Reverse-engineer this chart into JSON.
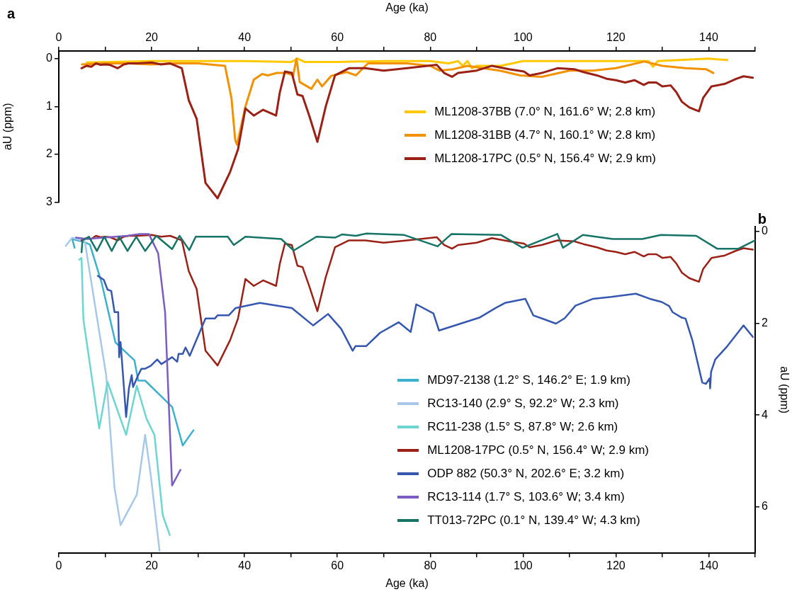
{
  "chart_data": [
    {
      "type": "line",
      "title": "a",
      "xlabel": "Age (ka)",
      "ylabel": "aU (ppm)",
      "xlim": [
        0,
        150
      ],
      "xticks": [
        0,
        {
          "value": 10,
          "label": null
        },
        20,
        {
          "value": 30,
          "label": null
        },
        40,
        {
          "value": 50,
          "label": null
        },
        60,
        {
          "value": 70,
          "label": null
        },
        80,
        {
          "value": 90,
          "label": null
        },
        100,
        {
          "value": 110,
          "label": null
        },
        120,
        {
          "value": 130,
          "label": null
        },
        140,
        {
          "value": 150,
          "label": null
        }
      ],
      "ylim": [
        3,
        -0.16
      ],
      "yticks": [
        0,
        1,
        2,
        3
      ],
      "grid": false,
      "legend": "bottom right",
      "marker": "none",
      "series": [
        {
          "name": "ML1208-37BB (7.0° N, 161.6° W; 2.8 km)",
          "color": "#ffc800",
          "x": [
            6,
            20,
            40,
            50,
            51.5,
            53,
            60,
            70,
            80,
            84,
            86,
            87,
            88,
            89,
            90,
            95.2,
            100,
            110,
            127,
            128,
            129,
            140,
            144
          ],
          "values": [
            0.08,
            0.05,
            0.05,
            0.07,
            0.0,
            0.07,
            0.07,
            0.05,
            0.05,
            0.1,
            0.05,
            0.15,
            0.05,
            0.2,
            0.15,
            0.15,
            0.05,
            0.05,
            0.05,
            0.17,
            0.05,
            0.0,
            0.03
          ]
        },
        {
          "name": "ML1208-31BB (4.7° N, 160.1° W; 2.8 km)",
          "color": "#f39200",
          "x": [
            5,
            10,
            15,
            20,
            25,
            30,
            35.8,
            37.2,
            38,
            38.4,
            40.2,
            42,
            43.8,
            45,
            47,
            49,
            50.5,
            51.2,
            51.9,
            54.4,
            55.7,
            56.7,
            58.7,
            62,
            64,
            66.6,
            75,
            80,
            82,
            85,
            88,
            95,
            99.4,
            104,
            110,
            115,
            120,
            126.1,
            130,
            135,
            139.4,
            141
          ],
          "values": [
            0.12,
            0.1,
            0.1,
            0.12,
            0.1,
            0.1,
            0.15,
            0.83,
            1.7,
            1.8,
            1.0,
            0.44,
            0.32,
            0.35,
            0.3,
            0.3,
            0.35,
            0.0,
            0.49,
            0.63,
            0.44,
            0.58,
            0.36,
            0.28,
            0.35,
            0.1,
            0.1,
            0.15,
            0.25,
            0.22,
            0.15,
            0.25,
            0.35,
            0.38,
            0.25,
            0.25,
            0.2,
            0.06,
            0.15,
            0.2,
            0.22,
            0.3
          ]
        },
        {
          "name": "ML1208-17PC (0.5° N, 156.4° W; 2.9 km)",
          "color": "#9b2016",
          "x": [
            4.9,
            6,
            7,
            8,
            9,
            10,
            11,
            12.7,
            14,
            15,
            17,
            20,
            22,
            24,
            26.5,
            28,
            29.7,
            31.6,
            34.2,
            36.9,
            38.6,
            40.2,
            42,
            44,
            46.8,
            47.6,
            48.7,
            50.2,
            51.4,
            52.5,
            54,
            55.7,
            57.5,
            59.5,
            62.5,
            66,
            70,
            75,
            81.4,
            83,
            84.7,
            86,
            90,
            93.3,
            97,
            100.2,
            101.4,
            104,
            107.4,
            111,
            113,
            115.9,
            118,
            120,
            122,
            124,
            126,
            127,
            128.7,
            130,
            131.8,
            133,
            134.2,
            135.8,
            137.1,
            137.9,
            138.8,
            140.6,
            143.4,
            146,
            147.5,
            149.5
          ],
          "values": [
            0.2,
            0.15,
            0.17,
            0.1,
            0.13,
            0.12,
            0.13,
            0.2,
            0.12,
            0.1,
            0.1,
            0.08,
            0.12,
            0.1,
            0.2,
            0.87,
            1.26,
            2.6,
            2.92,
            2.37,
            1.9,
            1.04,
            1.19,
            1.07,
            1.19,
            0.71,
            0.27,
            0.3,
            0.75,
            0.78,
            1.21,
            1.74,
            1.0,
            0.35,
            0.2,
            0.2,
            0.25,
            0.2,
            0.13,
            0.3,
            0.38,
            0.3,
            0.25,
            0.15,
            0.22,
            0.27,
            0.35,
            0.3,
            0.2,
            0.22,
            0.28,
            0.35,
            0.42,
            0.45,
            0.5,
            0.45,
            0.55,
            0.5,
            0.5,
            0.58,
            0.56,
            0.7,
            0.9,
            1.02,
            1.07,
            1.1,
            0.82,
            0.58,
            0.53,
            0.42,
            0.37,
            0.4
          ]
        }
      ]
    },
    {
      "type": "line",
      "title": "b",
      "xlabel": "Age (ka)",
      "y2label": "aU (ppm)",
      "xlim": [
        0,
        150
      ],
      "xticks": [
        0,
        {
          "value": 10,
          "label": null
        },
        20,
        {
          "value": 30,
          "label": null
        },
        40,
        {
          "value": 50,
          "label": null
        },
        60,
        {
          "value": 70,
          "label": null
        },
        80,
        {
          "value": 90,
          "label": null
        },
        100,
        {
          "value": 110,
          "label": null
        },
        120,
        {
          "value": 130,
          "label": null
        },
        140,
        {
          "value": 150,
          "label": null
        }
      ],
      "y2lim": [
        7,
        -0.1
      ],
      "y2ticks": [
        0,
        2,
        4,
        6
      ],
      "grid": false,
      "legend": "bottom right",
      "marker": "none",
      "series": [
        {
          "name": "MD97-2138 (1.2° S, 146.2° E; 1.9 km)",
          "color": "#3cb0cc",
          "axis": "y2",
          "x": [
            3.4,
            2.9,
            5.6,
            6.7,
            9.2,
            12.2,
            16.3,
            17.1,
            18.6,
            24.4,
            26.7,
            29
          ],
          "values": [
            0.36,
            0.17,
            0.24,
            0.29,
            1.11,
            2.42,
            2.81,
            3.25,
            3.25,
            3.82,
            4.66,
            4.33
          ]
        },
        {
          "name": "RC13-140 (2.9° S, 92.2° W; 2.3 km)",
          "color": "#a8c8ea",
          "axis": "y2",
          "x": [
            1.5,
            2.9,
            5.6,
            10.2,
            12,
            13.3,
            16.8,
            18.6,
            19.8,
            21.7
          ],
          "values": [
            0.32,
            0.14,
            0.22,
            3.13,
            5.58,
            6.39,
            5.73,
            4.43,
            5.3,
            6.95
          ]
        },
        {
          "name": "RC11-238 (1.5° S, 87.8° W; 2.6 km)",
          "color": "#6ed6d1",
          "axis": "y2",
          "x": [
            4.4,
            4.9,
            5.3,
            8.7,
            10.5,
            14.5,
            16.8,
            18.9,
            20.6,
            22.4,
            23.9
          ],
          "values": [
            0.62,
            0.58,
            1.92,
            4.29,
            3.28,
            4.43,
            3.36,
            4.08,
            4.43,
            6.18,
            6.61
          ]
        },
        {
          "name": "ML1208-17PC (0.5° N, 156.4° W; 2.9 km)",
          "color": "#9b2016",
          "axis": "y2",
          "x": [
            4.9,
            6,
            7,
            8,
            9,
            10,
            11,
            12.7,
            14,
            15,
            17,
            20,
            22,
            24,
            26.5,
            28,
            29.7,
            31.6,
            34.2,
            36.9,
            38.6,
            40.2,
            42,
            44,
            46.8,
            47.6,
            48.7,
            50.2,
            51.4,
            52.5,
            54,
            55.7,
            57.5,
            59.5,
            62.5,
            66,
            70,
            75,
            81.4,
            83,
            84.7,
            86,
            90,
            93.3,
            97,
            100.2,
            101.4,
            104,
            107.4,
            111,
            113,
            115.9,
            118,
            120,
            122,
            124,
            126,
            127,
            128.7,
            130,
            131.8,
            133,
            134.2,
            135.8,
            137.1,
            137.9,
            138.8,
            140.6,
            143.4,
            146,
            147.5,
            149.5
          ],
          "values": [
            0.2,
            0.15,
            0.17,
            0.1,
            0.13,
            0.12,
            0.13,
            0.2,
            0.12,
            0.1,
            0.1,
            0.08,
            0.12,
            0.1,
            0.2,
            0.87,
            1.26,
            2.6,
            2.92,
            2.37,
            1.9,
            1.04,
            1.19,
            1.07,
            1.19,
            0.71,
            0.27,
            0.3,
            0.75,
            0.78,
            1.21,
            1.74,
            1.0,
            0.35,
            0.2,
            0.2,
            0.25,
            0.2,
            0.13,
            0.3,
            0.38,
            0.3,
            0.25,
            0.15,
            0.22,
            0.27,
            0.35,
            0.3,
            0.2,
            0.22,
            0.28,
            0.35,
            0.42,
            0.45,
            0.5,
            0.45,
            0.55,
            0.5,
            0.5,
            0.58,
            0.56,
            0.7,
            0.9,
            1.02,
            1.07,
            1.1,
            0.82,
            0.58,
            0.53,
            0.42,
            0.37,
            0.4
          ]
        },
        {
          "name": "ODP 882 (50.3° N, 202.6° E; 3.2 km)",
          "color": "#3557b0",
          "axis": "y2",
          "x": [
            8.4,
            9.7,
            10.5,
            11.3,
            12,
            12.8,
            13,
            13.3,
            14.5,
            15.1,
            15.7,
            16,
            17.1,
            17.8,
            18.6,
            19.8,
            21.2,
            22.1,
            24.4,
            25.5,
            25.8,
            26.7,
            27.3,
            28.2,
            31.6,
            33.6,
            34.2,
            36.6,
            38.1,
            43.3,
            50.2,
            54.8,
            58,
            60.8,
            63.3,
            63.9,
            66.2,
            69.2,
            73.2,
            75.8,
            77,
            80.7,
            81.9,
            90.6,
            94.1,
            96.1,
            100.5,
            102.2,
            107.1,
            109,
            111.3,
            115.1,
            119,
            124.3,
            127.3,
            129.9,
            131.5,
            132.2,
            134.2,
            135,
            136.5,
            138.6,
            139.4,
            140.2,
            140.3,
            140.5,
            141.4,
            144,
            147.5,
            149.5
          ],
          "values": [
            0.97,
            1.06,
            1.27,
            1.3,
            1.76,
            1.76,
            2.74,
            2.41,
            4.04,
            3.42,
            3.13,
            3.39,
            3.13,
            2.99,
            2.99,
            2.93,
            2.79,
            2.89,
            2.74,
            2.84,
            2.67,
            2.67,
            2.53,
            2.71,
            1.9,
            1.9,
            1.83,
            1.83,
            1.67,
            1.56,
            1.67,
            2.05,
            1.8,
            2.12,
            2.6,
            2.5,
            2.5,
            2.21,
            1.98,
            2.19,
            1.59,
            1.79,
            2.16,
            1.88,
            1.67,
            1.56,
            1.47,
            1.83,
            2.01,
            1.89,
            1.62,
            1.47,
            1.43,
            1.36,
            1.47,
            1.54,
            1.63,
            1.76,
            1.88,
            1.9,
            2.38,
            3.29,
            3.32,
            3.2,
            3.42,
            3.06,
            2.79,
            2.5,
            2.05,
            2.3
          ]
        },
        {
          "name": "RC13-114 (1.7° S, 103.6° W; 3.4 km)",
          "color": "#7a5cc3",
          "axis": "y2",
          "x": [
            3.7,
            6.1,
            9.7,
            14.8,
            17.4,
            19.4,
            21.4,
            22.9,
            24.4,
            26.2
          ],
          "values": [
            0.14,
            0.17,
            0.14,
            0.1,
            0.06,
            0.06,
            0.48,
            1.77,
            5.53,
            5.19
          ]
        },
        {
          "name": "TT013-72PC (0.1° N, 139.4° W; 4.3 km)",
          "color": "#157466",
          "axis": "y2",
          "x": [
            4.9,
            5.1,
            6.5,
            8.2,
            9.8,
            11.4,
            13,
            14.8,
            16.7,
            18.6,
            21,
            24.4,
            26,
            28.1,
            29.5,
            33.1,
            36.4,
            37.7,
            40.2,
            47.9,
            50.6,
            55.5,
            59.5,
            61,
            64,
            66.3,
            74.3,
            81.6,
            84.6,
            95.2,
            99.9,
            107.4,
            108.6,
            112.9,
            119.3,
            125.7,
            129.7,
            137.3,
            141.8,
            146.4,
            150
          ],
          "values": [
            0.46,
            0.2,
            0.12,
            0.43,
            0.12,
            0.43,
            0.12,
            0.43,
            0.12,
            0.43,
            0.1,
            0.39,
            0.1,
            0.41,
            0.12,
            0.12,
            0.12,
            0.3,
            0.12,
            0.17,
            0.42,
            0.12,
            0.14,
            0.07,
            0.1,
            0.05,
            0.08,
            0.33,
            0.06,
            0.08,
            0.36,
            0.06,
            0.36,
            0.08,
            0.17,
            0.17,
            0.08,
            0.1,
            0.38,
            0.38,
            0.2
          ]
        }
      ]
    }
  ]
}
